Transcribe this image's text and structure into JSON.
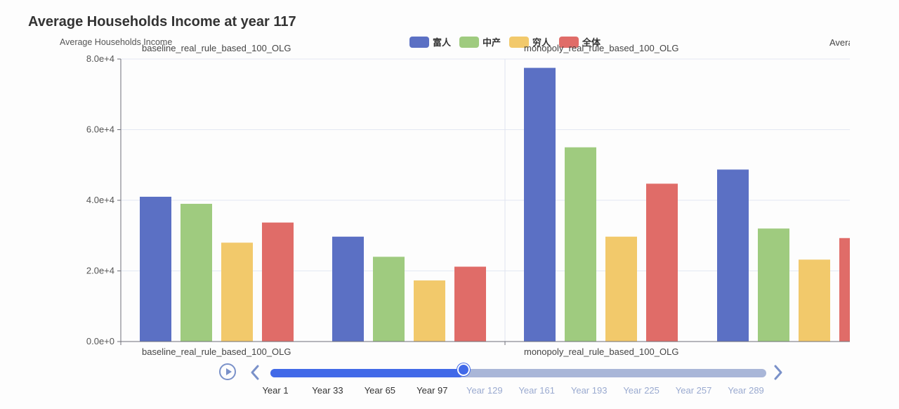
{
  "title": "Average Households Income at year 117",
  "ylabel": "Average Households Income",
  "right_clipped_label": "Avera",
  "legend": [
    {
      "label": "富人",
      "color": "#5b70c4"
    },
    {
      "label": "中产",
      "color": "#9fcb7f"
    },
    {
      "label": "穷人",
      "color": "#f2c96b"
    },
    {
      "label": "全体",
      "color": "#e06c68"
    }
  ],
  "chart_data": {
    "type": "bar",
    "ylabel": "Average Households Income",
    "ylim": [
      0,
      80000
    ],
    "yticks": [
      "0.0e+0",
      "2.0e+4",
      "4.0e+4",
      "6.0e+4",
      "8.0e+4"
    ],
    "grid": true,
    "legend_position": "top-center",
    "panels": [
      {
        "title": "baseline_real_rule_based_100_OLG",
        "xlabel": "baseline_real_rule_based_100_OLG",
        "groups": [
          {
            "values": [
              41000,
              39000,
              28000,
              33700
            ]
          },
          {
            "values": [
              29700,
              24000,
              17300,
              21200
            ]
          }
        ]
      },
      {
        "title": "monopoly_real_rule_based_100_OLG",
        "xlabel": "monopoly_real_rule_based_100_OLG",
        "groups": [
          {
            "values": [
              77500,
              55000,
              29700,
              44700
            ]
          },
          {
            "values": [
              48700,
              32000,
              23200,
              29300
            ]
          }
        ]
      }
    ],
    "series": [
      {
        "name": "富人"
      },
      {
        "name": "中产"
      },
      {
        "name": "穷人"
      },
      {
        "name": "全体"
      }
    ]
  },
  "timeline": {
    "labels": [
      "Year 1",
      "Year 33",
      "Year 65",
      "Year 97",
      "Year 129",
      "Year 161",
      "Year 193",
      "Year 225",
      "Year 257",
      "Year 289"
    ],
    "progress": 0.39,
    "active_color": "#4169e8",
    "inactive_color": "#a9b6d8",
    "active_label_color": "#333333",
    "inactive_label_color": "#9aaad0"
  }
}
